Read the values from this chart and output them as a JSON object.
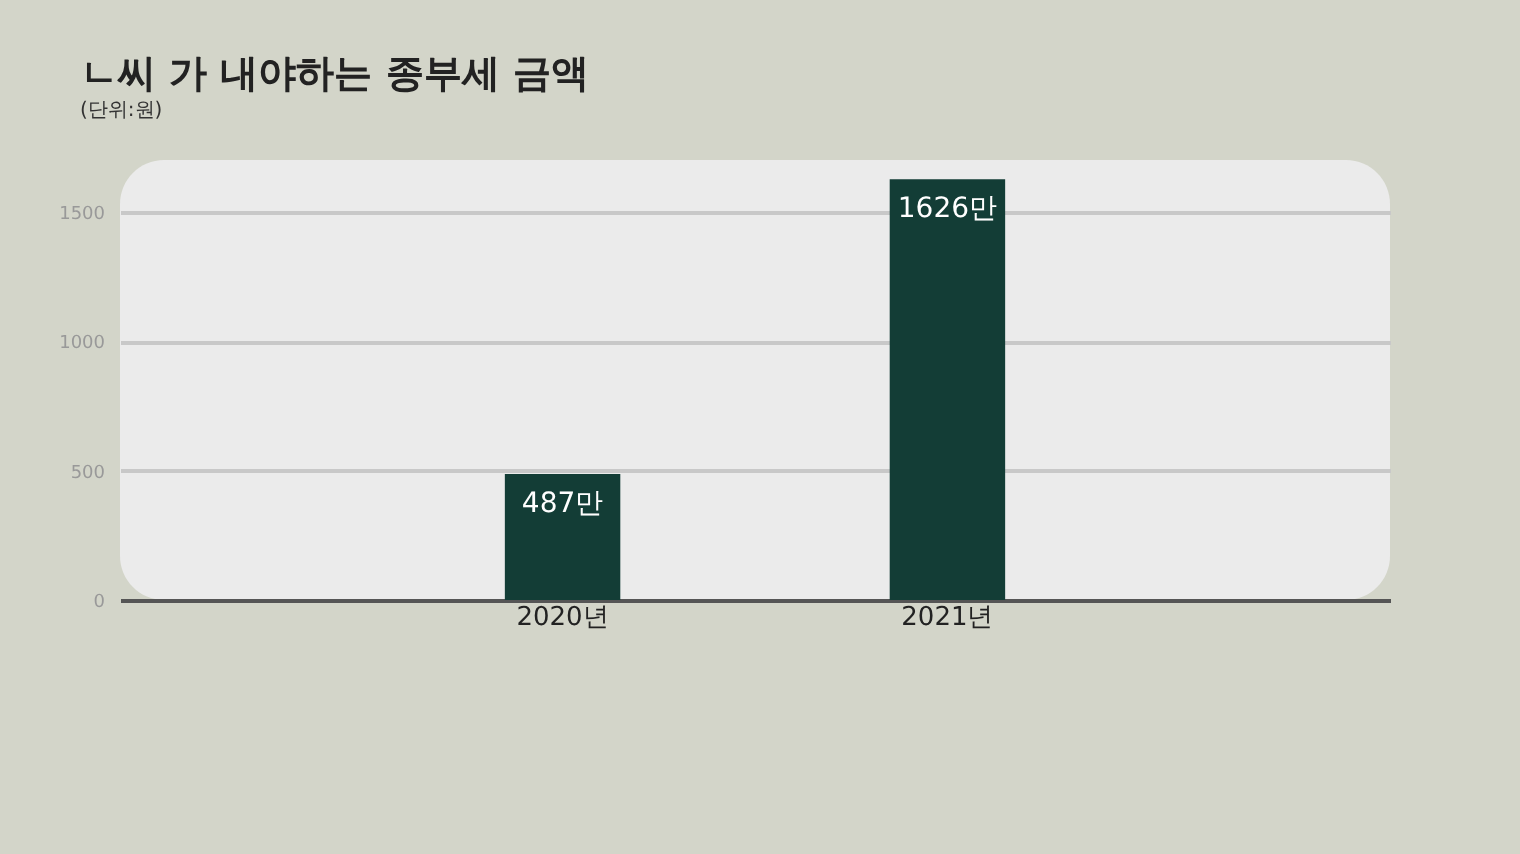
{
  "chart_data": {
    "type": "bar",
    "title": "ㄴ씨 가 내야하는 종부세 금액",
    "subtitle": "(단위:원)",
    "categories": [
      "2020년",
      "2021년"
    ],
    "values": [
      487,
      1626
    ],
    "value_labels": [
      "487만",
      "1626만"
    ],
    "color": "#133d36",
    "ylim": [
      0,
      1700
    ],
    "yticks": [
      0,
      500,
      1000,
      1500
    ],
    "grid": "y"
  }
}
